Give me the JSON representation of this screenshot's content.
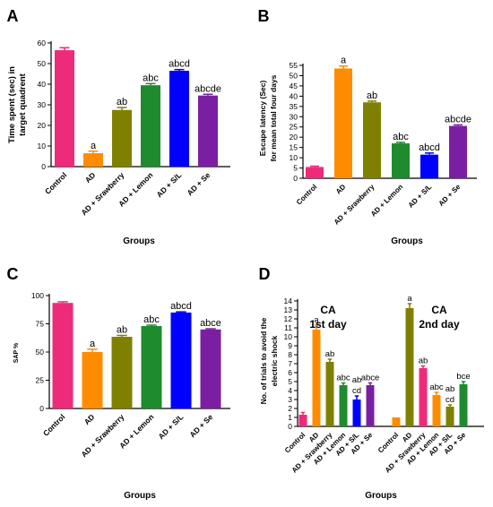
{
  "chart_data": [
    {
      "panel": "A",
      "type": "bar",
      "ylabel": "Time spent (sec) in target quadrent",
      "xlabel": "Groups",
      "ylim": [
        0,
        60
      ],
      "yticks": [
        0,
        10,
        20,
        30,
        40,
        50,
        60
      ],
      "categories": [
        "Control",
        "AD",
        "AD + Srawberry",
        "AD + Lemon",
        "AD + S/L",
        "AD + Se"
      ],
      "values": [
        56.5,
        6.5,
        27.5,
        39.5,
        46.5,
        34.5
      ],
      "errors": [
        1.2,
        1.0,
        1.2,
        0.8,
        0.6,
        0.6
      ],
      "annotations": [
        "",
        "a",
        "ab",
        "abc",
        "abcd",
        "abcde"
      ],
      "colors": [
        "#ee2a7b",
        "#ff8c00",
        "#808000",
        "#1e8b2e",
        "#0000ff",
        "#7b1fa2"
      ]
    },
    {
      "panel": "B",
      "type": "bar",
      "ylabel": "Escape latency (Sec) for mean total four days",
      "xlabel": "Groups",
      "ylim": [
        0,
        55
      ],
      "yticks": [
        0,
        5,
        10,
        15,
        20,
        25,
        30,
        35,
        40,
        45,
        50,
        55
      ],
      "categories": [
        "Control",
        "AD",
        "AD + Srawberry",
        "AD + Lemon",
        "AD + S/L",
        "AD + Se"
      ],
      "values": [
        5.5,
        53.5,
        37,
        17,
        11.5,
        25.5
      ],
      "errors": [
        0.4,
        1.2,
        0.6,
        0.5,
        0.8,
        0.5
      ],
      "annotations": [
        "",
        "a",
        "ab",
        "abc",
        "abcd",
        "abcde"
      ],
      "colors": [
        "#ee2a7b",
        "#ff8c00",
        "#808000",
        "#1e8b2e",
        "#0000ff",
        "#7b1fa2"
      ]
    },
    {
      "panel": "C",
      "type": "bar",
      "ylabel": "SAP %",
      "xlabel": "Groups",
      "ylim": [
        0,
        100
      ],
      "yticks": [
        0,
        25,
        50,
        75,
        100
      ],
      "categories": [
        "Control",
        "AD",
        "AD + Srawberry",
        "AD + Lemon",
        "AD + S/L",
        "AD + Se"
      ],
      "values": [
        93.5,
        50,
        63.5,
        73,
        85,
        70
      ],
      "errors": [
        1.0,
        2.5,
        1.2,
        0.8,
        0.6,
        0.6
      ],
      "annotations": [
        "",
        "a",
        "ab",
        "abc",
        "abcd",
        "abce"
      ],
      "colors": [
        "#ee2a7b",
        "#ff8c00",
        "#808000",
        "#1e8b2e",
        "#0000ff",
        "#7b1fa2"
      ]
    },
    {
      "panel": "D",
      "type": "bar",
      "ylabel": "No. of trials to avoid the electric shock",
      "xlabel": "Groups",
      "ylim": [
        0,
        14
      ],
      "yticks": [
        0,
        1,
        2,
        3,
        4,
        5,
        6,
        7,
        8,
        9,
        10,
        11,
        12,
        13,
        14
      ],
      "group_titles": [
        "CA 1st day",
        "CA 2nd day"
      ],
      "groups": [
        {
          "categories": [
            "Control",
            "AD",
            "AD + Srawberry",
            "AD + Lemon",
            "AD + S/L",
            "AD + Se"
          ],
          "values": [
            1.3,
            10.8,
            7.2,
            4.6,
            3.0,
            4.6
          ],
          "errors": [
            0.25,
            0.5,
            0.3,
            0.25,
            0.4,
            0.25
          ],
          "annotations": [
            "",
            "a",
            "ab",
            "abc",
            "ab cd",
            "abce"
          ],
          "colors": [
            "#ee2a7b",
            "#ff8c00",
            "#808000",
            "#1e8b2e",
            "#0000ff",
            "#7b1fa2"
          ]
        },
        {
          "categories": [
            "Control",
            "AD",
            "AD + Srawberry",
            "AD + Lemon",
            "AD + S/L",
            "AD + Se"
          ],
          "values": [
            1.0,
            13.2,
            6.5,
            3.5,
            2.2,
            4.7
          ],
          "errors": [
            0.0,
            0.5,
            0.25,
            0.3,
            0.2,
            0.3
          ],
          "annotations": [
            "",
            "a",
            "ab",
            "abc",
            "ab cd",
            "bce"
          ],
          "colors": [
            "#ff8c00",
            "#808000",
            "#ee2a7b",
            "#ff8c00",
            "#808000",
            "#1e8b2e"
          ]
        }
      ]
    }
  ]
}
